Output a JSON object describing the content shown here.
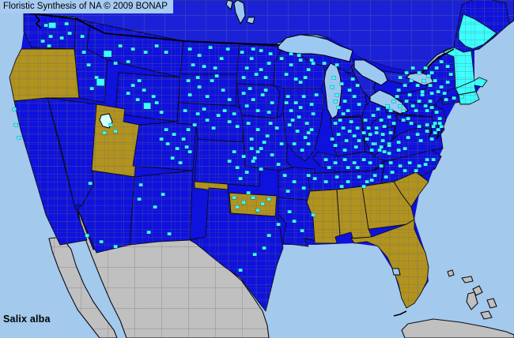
{
  "header": {
    "title": "Floristic Synthesis of NA © 2009 BONAP"
  },
  "footer": {
    "species": "Salix alba"
  },
  "palette": {
    "water": "#A3C9EC",
    "us_state_blue": "#0F11DC",
    "canada_blue": "#1B22D6",
    "county_cyan": "#3DFFFF",
    "state_tan": "#B2931D",
    "absent_gray": "#C0C0C0",
    "lake_blue": "#9CC9F2",
    "salt_lake": "#CFFFFF",
    "border_black": "#000000",
    "titlebar_bg": "#A7CBF2",
    "text_color": "#000000"
  },
  "map": {
    "regions_tan": [
      "oregon",
      "utah",
      "oklahoma",
      "mississippi",
      "alabama",
      "georgia",
      "south_carolina",
      "florida"
    ],
    "regions_cyan": [
      "vermont_nh",
      "massachusetts",
      "conn_ri",
      "maine_south"
    ],
    "regions_gray": [
      "mexico",
      "baja",
      "cuba",
      "bahama_1",
      "bahama_2",
      "bahama_3",
      "andros",
      "bahama_4",
      "bahama_5"
    ],
    "regions_canada": [
      "canada",
      "ontario_peninsula"
    ],
    "lakes": [
      "superior",
      "michigan_lake",
      "huron",
      "erie",
      "ontario_lake",
      "winnipeg",
      "winnipegosis",
      "lake_of_woods",
      "okeechobee"
    ],
    "county_markers": [
      [
        58,
        32
      ],
      [
        66,
        32,
        9,
        7
      ],
      [
        64,
        46
      ],
      [
        54,
        52
      ],
      [
        78,
        48
      ],
      [
        88,
        42
      ],
      [
        62,
        58
      ],
      [
        104,
        46
      ],
      [
        84,
        30
      ],
      [
        112,
        82
      ],
      [
        122,
        98
      ],
      [
        127,
        104,
        10,
        9
      ],
      [
        116,
        112
      ],
      [
        106,
        66
      ],
      [
        136,
        68,
        10,
        8
      ],
      [
        152,
        58
      ],
      [
        168,
        62
      ],
      [
        184,
        66
      ],
      [
        198,
        58
      ],
      [
        162,
        78
      ],
      [
        210,
        66
      ],
      [
        146,
        80
      ],
      [
        168,
        108
      ],
      [
        182,
        114
      ],
      [
        194,
        122
      ],
      [
        174,
        126
      ],
      [
        186,
        134,
        9,
        8
      ],
      [
        198,
        130
      ],
      [
        162,
        118
      ],
      [
        204,
        142
      ],
      [
        176,
        102
      ],
      [
        140,
        158
      ],
      [
        132,
        168
      ],
      [
        146,
        166
      ],
      [
        114,
        232
      ],
      [
        18,
        138
      ],
      [
        20,
        158
      ],
      [
        24,
        174
      ],
      [
        110,
        298
      ],
      [
        146,
        312
      ],
      [
        128,
        306
      ],
      [
        178,
        234
      ],
      [
        196,
        262
      ],
      [
        188,
        294
      ],
      [
        214,
        296
      ],
      [
        206,
        246
      ],
      [
        176,
        252
      ],
      [
        210,
        164
      ],
      [
        220,
        170
      ],
      [
        212,
        182
      ],
      [
        224,
        188
      ],
      [
        232,
        176
      ],
      [
        240,
        192
      ],
      [
        218,
        200
      ],
      [
        228,
        206
      ],
      [
        238,
        164
      ],
      [
        204,
        176
      ],
      [
        236,
        186
      ],
      [
        240,
        62
      ],
      [
        252,
        70
      ],
      [
        266,
        60
      ],
      [
        280,
        74
      ],
      [
        258,
        84
      ],
      [
        244,
        82
      ],
      [
        288,
        62
      ],
      [
        272,
        86
      ],
      [
        238,
        102
      ],
      [
        252,
        110
      ],
      [
        268,
        102
      ],
      [
        282,
        114
      ],
      [
        262,
        122
      ],
      [
        240,
        120
      ],
      [
        290,
        126
      ],
      [
        274,
        96
      ],
      [
        250,
        98
      ],
      [
        234,
        140
      ],
      [
        250,
        144
      ],
      [
        262,
        152
      ],
      [
        276,
        146
      ],
      [
        290,
        154
      ],
      [
        300,
        160
      ],
      [
        246,
        158
      ],
      [
        270,
        162
      ],
      [
        284,
        140
      ],
      [
        296,
        144
      ],
      [
        258,
        138
      ],
      [
        296,
        192
      ],
      [
        308,
        198
      ],
      [
        320,
        204
      ],
      [
        300,
        212
      ],
      [
        312,
        218
      ],
      [
        326,
        192
      ],
      [
        330,
        214
      ],
      [
        318,
        188
      ],
      [
        304,
        226
      ],
      [
        290,
        204
      ],
      [
        296,
        250
      ],
      [
        308,
        256
      ],
      [
        320,
        250
      ],
      [
        332,
        258
      ],
      [
        300,
        262
      ],
      [
        340,
        252
      ],
      [
        314,
        244
      ],
      [
        326,
        266
      ],
      [
        340,
        298
      ],
      [
        322,
        322
      ],
      [
        352,
        284
      ],
      [
        304,
        342
      ],
      [
        334,
        314
      ],
      [
        306,
        66
      ],
      [
        318,
        74
      ],
      [
        330,
        64
      ],
      [
        340,
        80
      ],
      [
        312,
        86
      ],
      [
        324,
        94
      ],
      [
        336,
        98
      ],
      [
        342,
        68
      ],
      [
        308,
        98
      ],
      [
        330,
        88
      ],
      [
        320,
        62
      ],
      [
        308,
        118
      ],
      [
        320,
        126
      ],
      [
        332,
        120
      ],
      [
        344,
        130
      ],
      [
        312,
        134
      ],
      [
        326,
        140
      ],
      [
        340,
        142
      ],
      [
        336,
        114
      ],
      [
        316,
        112
      ],
      [
        356,
        74
      ],
      [
        368,
        82
      ],
      [
        380,
        76
      ],
      [
        390,
        88
      ],
      [
        362,
        94
      ],
      [
        374,
        100
      ],
      [
        386,
        98
      ],
      [
        396,
        80
      ],
      [
        368,
        68
      ],
      [
        380,
        104
      ],
      [
        378,
        70
      ],
      [
        394,
        76
      ],
      [
        410,
        80
      ],
      [
        426,
        82
      ],
      [
        422,
        98
      ],
      [
        432,
        106
      ],
      [
        442,
        114
      ],
      [
        426,
        120
      ],
      [
        436,
        128
      ],
      [
        448,
        122
      ],
      [
        428,
        136
      ],
      [
        440,
        140
      ],
      [
        452,
        108
      ],
      [
        454,
        132
      ],
      [
        420,
        110
      ],
      [
        446,
        100
      ],
      [
        434,
        144
      ],
      [
        424,
        128
      ],
      [
        364,
        122
      ],
      [
        374,
        130
      ],
      [
        384,
        122
      ],
      [
        394,
        132
      ],
      [
        368,
        140
      ],
      [
        378,
        148
      ],
      [
        388,
        156
      ],
      [
        396,
        144
      ],
      [
        366,
        158
      ],
      [
        376,
        166
      ],
      [
        386,
        174
      ],
      [
        394,
        164
      ],
      [
        372,
        182
      ],
      [
        382,
        190
      ],
      [
        390,
        182
      ],
      [
        400,
        120
      ],
      [
        362,
        130
      ],
      [
        370,
        152
      ],
      [
        380,
        136
      ],
      [
        390,
        168
      ],
      [
        314,
        156
      ],
      [
        326,
        164
      ],
      [
        338,
        172
      ],
      [
        350,
        162
      ],
      [
        318,
        176
      ],
      [
        330,
        188
      ],
      [
        344,
        196
      ],
      [
        356,
        182
      ],
      [
        322,
        200
      ],
      [
        352,
        208
      ],
      [
        342,
        156
      ],
      [
        334,
        180
      ],
      [
        424,
        156
      ],
      [
        434,
        162
      ],
      [
        444,
        154
      ],
      [
        452,
        162
      ],
      [
        428,
        170
      ],
      [
        438,
        178
      ],
      [
        448,
        172
      ],
      [
        424,
        184
      ],
      [
        436,
        190
      ],
      [
        450,
        186
      ],
      [
        430,
        152
      ],
      [
        454,
        178
      ],
      [
        442,
        166
      ],
      [
        420,
        176
      ],
      [
        462,
        152
      ],
      [
        472,
        146
      ],
      [
        482,
        152
      ],
      [
        492,
        148
      ],
      [
        466,
        162
      ],
      [
        476,
        168
      ],
      [
        486,
        160
      ],
      [
        494,
        168
      ],
      [
        464,
        176
      ],
      [
        474,
        182
      ],
      [
        484,
        178
      ],
      [
        492,
        182
      ],
      [
        470,
        190
      ],
      [
        486,
        192
      ],
      [
        478,
        138
      ],
      [
        490,
        136
      ],
      [
        498,
        156
      ],
      [
        460,
        168
      ],
      [
        412,
        202
      ],
      [
        424,
        206
      ],
      [
        436,
        202
      ],
      [
        448,
        206
      ],
      [
        460,
        202
      ],
      [
        468,
        206
      ],
      [
        416,
        212
      ],
      [
        440,
        212
      ],
      [
        452,
        212
      ],
      [
        398,
        226
      ],
      [
        412,
        230
      ],
      [
        426,
        224
      ],
      [
        440,
        230
      ],
      [
        454,
        224
      ],
      [
        464,
        230
      ],
      [
        474,
        222
      ],
      [
        432,
        236
      ],
      [
        470,
        228
      ],
      [
        460,
        236
      ],
      [
        360,
        222
      ],
      [
        372,
        230
      ],
      [
        384,
        238
      ],
      [
        364,
        242
      ],
      [
        390,
        222
      ],
      [
        366,
        268
      ],
      [
        382,
        292
      ],
      [
        372,
        280
      ],
      [
        396,
        272
      ],
      [
        468,
        170
      ],
      [
        476,
        162
      ],
      [
        484,
        170
      ],
      [
        472,
        182
      ],
      [
        482,
        186
      ],
      [
        480,
        190
      ],
      [
        492,
        184
      ],
      [
        504,
        180
      ],
      [
        516,
        174
      ],
      [
        528,
        170
      ],
      [
        540,
        166
      ],
      [
        550,
        168
      ],
      [
        492,
        194
      ],
      [
        512,
        188
      ],
      [
        532,
        178
      ],
      [
        546,
        176
      ],
      [
        504,
        190
      ],
      [
        482,
        210
      ],
      [
        494,
        206
      ],
      [
        506,
        210
      ],
      [
        518,
        206
      ],
      [
        530,
        210
      ],
      [
        540,
        202
      ],
      [
        496,
        218
      ],
      [
        512,
        216
      ],
      [
        526,
        216
      ],
      [
        538,
        208
      ],
      [
        548,
        202
      ],
      [
        488,
        224
      ],
      [
        490,
        134
      ],
      [
        498,
        128
      ],
      [
        506,
        134
      ],
      [
        514,
        128
      ],
      [
        522,
        134
      ],
      [
        530,
        128
      ],
      [
        538,
        134
      ],
      [
        544,
        128
      ],
      [
        494,
        140
      ],
      [
        510,
        140
      ],
      [
        526,
        140
      ],
      [
        540,
        140
      ],
      [
        502,
        122
      ],
      [
        518,
        120
      ],
      [
        534,
        120
      ],
      [
        546,
        136
      ],
      [
        504,
        114
      ],
      [
        512,
        108
      ],
      [
        520,
        102
      ],
      [
        528,
        108
      ],
      [
        536,
        102
      ],
      [
        544,
        108
      ],
      [
        506,
        98
      ],
      [
        514,
        92
      ],
      [
        522,
        86
      ],
      [
        530,
        92
      ],
      [
        538,
        86
      ],
      [
        546,
        92
      ],
      [
        552,
        86
      ],
      [
        558,
        78
      ],
      [
        566,
        84
      ],
      [
        570,
        94
      ],
      [
        566,
        104
      ],
      [
        558,
        110
      ],
      [
        550,
        102
      ],
      [
        546,
        118
      ],
      [
        554,
        116
      ],
      [
        562,
        118
      ],
      [
        542,
        96
      ],
      [
        534,
        116
      ],
      [
        552,
        142
      ],
      [
        556,
        150
      ],
      [
        550,
        156
      ],
      [
        558,
        160
      ],
      [
        554,
        164
      ],
      [
        510,
        152
      ],
      [
        520,
        156
      ],
      [
        530,
        160
      ],
      [
        540,
        158
      ],
      [
        548,
        160
      ],
      [
        516,
        150
      ],
      [
        556,
        156
      ],
      [
        564,
        126
      ],
      [
        574,
        124
      ],
      [
        584,
        122
      ]
    ]
  }
}
